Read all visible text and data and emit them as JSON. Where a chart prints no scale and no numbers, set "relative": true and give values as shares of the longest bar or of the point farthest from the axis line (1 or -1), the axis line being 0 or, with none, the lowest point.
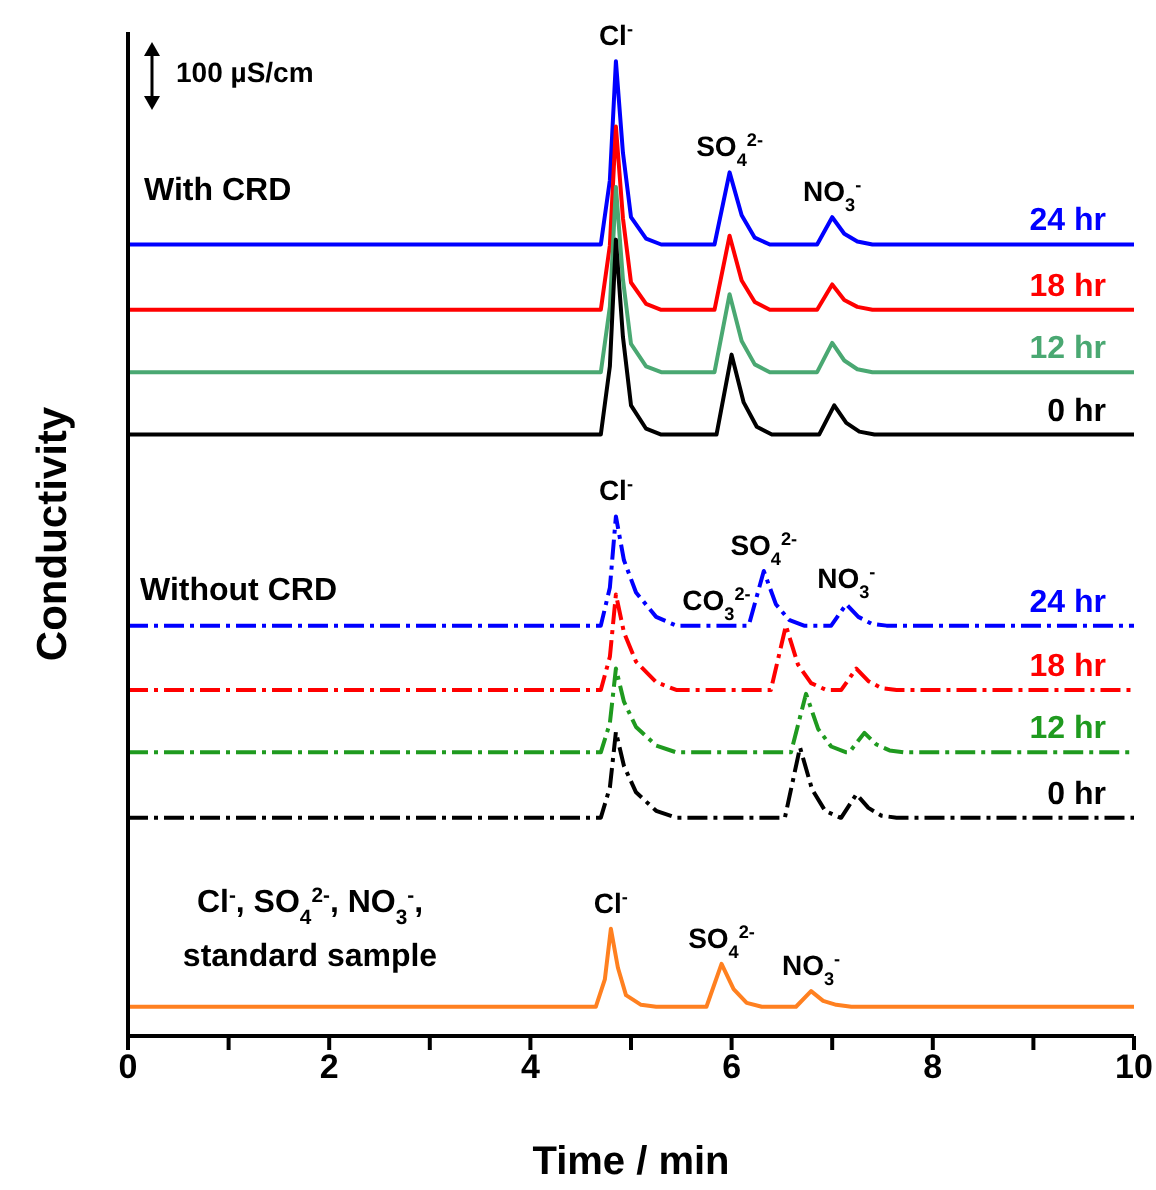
{
  "chart_data": {
    "type": "line",
    "relative": true,
    "xlabel": "Time / min",
    "ylabel": "Conductivity",
    "xlim": [
      0,
      10
    ],
    "xticks": [
      0,
      {
        "value": 1,
        "label": null
      },
      2,
      {
        "value": 3,
        "label": null
      },
      4,
      {
        "value": 5,
        "label": null
      },
      6,
      {
        "value": 7,
        "label": null
      },
      8,
      {
        "value": 9,
        "label": null
      },
      10
    ],
    "annotations": [
      "100 µS/cm",
      "With CRD",
      "Without CRD",
      "Cl$^{-}$, SO$_{4}$$^{2-}$, NO$_{3}$$^{-}$,\nstandard sample",
      {
        "text": "Cl$^{-}$",
        "x": 4.85,
        "y": 1.0
      },
      {
        "text": "SO$_{4}$$^{2-}$",
        "x": 5.98,
        "y": 0.886
      },
      {
        "text": "NO$_{3}$$^{-}$",
        "x": 7.0,
        "y": 0.84
      },
      {
        "text": "Cl$^{-}$",
        "x": 4.85,
        "y": 0.533
      },
      {
        "text": "CO$_{3}$$^{2-}$",
        "x": 5.85,
        "y": 0.421
      },
      {
        "text": "SO$_{4}$$^{2-}$",
        "x": 6.32,
        "y": 0.477
      },
      {
        "text": "NO$_{3}$$^{-}$",
        "x": 7.14,
        "y": 0.443
      },
      {
        "text": "Cl$^{-}$",
        "x": 4.8,
        "y": 0.11
      },
      {
        "text": "SO$_{4}$$^{2-}$",
        "x": 5.9,
        "y": 0.074
      },
      {
        "text": "NO$_{3}$$^{-}$",
        "x": 6.79,
        "y": 0.046
      }
    ],
    "series": [
      {
        "name": "24 hr",
        "color": "#0000ff",
        "line_style": "solid",
        "x": [
          0,
          4.7,
          4.79,
          4.85,
          4.92,
          5.0,
          5.15,
          5.3,
          5.83,
          5.98,
          6.1,
          6.23,
          6.38,
          6.85,
          7.0,
          7.12,
          7.25,
          7.4,
          10
        ],
        "values": [
          0.812,
          0.812,
          0.878,
          1.0,
          0.906,
          0.84,
          0.818,
          0.812,
          0.812,
          0.886,
          0.842,
          0.819,
          0.812,
          0.812,
          0.84,
          0.823,
          0.815,
          0.812,
          0.812
        ]
      },
      {
        "name": "18 hr",
        "color": "#ff0000",
        "line_style": "solid",
        "x": [
          0,
          4.7,
          4.79,
          4.85,
          4.92,
          5.0,
          5.15,
          5.3,
          5.83,
          5.98,
          6.1,
          6.23,
          6.38,
          6.85,
          7.0,
          7.12,
          7.25,
          7.4,
          10
        ],
        "values": [
          0.745,
          0.745,
          0.811,
          0.933,
          0.839,
          0.773,
          0.751,
          0.745,
          0.745,
          0.821,
          0.775,
          0.753,
          0.745,
          0.745,
          0.771,
          0.755,
          0.748,
          0.745,
          0.745
        ]
      },
      {
        "name": "12 hr",
        "color": "#4aa872",
        "line_style": "solid",
        "x": [
          0,
          4.7,
          4.79,
          4.85,
          4.92,
          5.0,
          5.15,
          5.3,
          5.83,
          5.98,
          6.1,
          6.23,
          6.38,
          6.85,
          7.0,
          7.12,
          7.25,
          7.4,
          10
        ],
        "values": [
          0.681,
          0.681,
          0.748,
          0.871,
          0.776,
          0.71,
          0.687,
          0.681,
          0.681,
          0.761,
          0.713,
          0.689,
          0.681,
          0.681,
          0.711,
          0.693,
          0.684,
          0.681,
          0.681
        ]
      },
      {
        "name": "0 hr",
        "color": "#000000",
        "line_style": "solid",
        "x": [
          0,
          4.7,
          4.79,
          4.85,
          4.92,
          5.0,
          5.15,
          5.3,
          5.85,
          6.0,
          6.12,
          6.25,
          6.4,
          6.87,
          7.02,
          7.14,
          7.27,
          7.42,
          10
        ],
        "values": [
          0.617,
          0.617,
          0.687,
          0.817,
          0.717,
          0.647,
          0.623,
          0.617,
          0.617,
          0.699,
          0.65,
          0.625,
          0.617,
          0.617,
          0.647,
          0.629,
          0.62,
          0.617,
          0.617
        ]
      },
      {
        "name": "24 hr",
        "color": "#0000ff",
        "line_style": "dashed",
        "x": [
          0,
          4.7,
          4.79,
          4.85,
          4.93,
          5.05,
          5.25,
          5.45,
          6.17,
          6.32,
          6.44,
          6.57,
          6.72,
          6.99,
          7.14,
          7.26,
          7.39,
          7.54,
          10
        ],
        "values": [
          0.421,
          0.421,
          0.46,
          0.533,
          0.488,
          0.455,
          0.43,
          0.421,
          0.421,
          0.477,
          0.443,
          0.427,
          0.421,
          0.421,
          0.443,
          0.43,
          0.423,
          0.421,
          0.421
        ]
      },
      {
        "name": "18 hr",
        "color": "#ff0000",
        "line_style": "dashed",
        "x": [
          0,
          4.7,
          4.79,
          4.85,
          4.93,
          5.05,
          5.25,
          5.45,
          6.39,
          6.54,
          6.66,
          6.79,
          6.94,
          7.09,
          7.24,
          7.36,
          7.49,
          7.64,
          10
        ],
        "values": [
          0.355,
          0.355,
          0.389,
          0.453,
          0.414,
          0.384,
          0.363,
          0.355,
          0.355,
          0.421,
          0.381,
          0.362,
          0.355,
          0.355,
          0.377,
          0.364,
          0.357,
          0.355,
          0.355
        ]
      },
      {
        "name": "12 hr",
        "color": "#1f9a1f",
        "line_style": "dashed",
        "x": [
          0,
          4.7,
          4.79,
          4.85,
          4.93,
          5.05,
          5.25,
          5.45,
          6.59,
          6.74,
          6.86,
          6.99,
          7.14,
          7.17,
          7.32,
          7.44,
          7.57,
          7.72,
          10
        ],
        "values": [
          0.291,
          0.291,
          0.321,
          0.377,
          0.343,
          0.317,
          0.298,
          0.291,
          0.291,
          0.351,
          0.315,
          0.297,
          0.291,
          0.291,
          0.311,
          0.299,
          0.293,
          0.291,
          0.291
        ]
      },
      {
        "name": "0 hr",
        "color": "#000000",
        "line_style": "dashed",
        "x": [
          0,
          4.7,
          4.79,
          4.85,
          4.93,
          5.05,
          5.25,
          5.45,
          6.53,
          6.68,
          6.8,
          6.93,
          7.08,
          7.09,
          7.24,
          7.36,
          7.49,
          7.64,
          10
        ],
        "values": [
          0.224,
          0.224,
          0.255,
          0.312,
          0.277,
          0.25,
          0.231,
          0.224,
          0.224,
          0.296,
          0.253,
          0.231,
          0.224,
          0.224,
          0.248,
          0.234,
          0.226,
          0.224,
          0.224
        ]
      },
      {
        "color": "#ff8020",
        "line_style": "solid",
        "x": [
          0,
          4.65,
          4.74,
          4.8,
          4.87,
          4.95,
          5.1,
          5.25,
          5.75,
          5.9,
          6.02,
          6.15,
          6.3,
          6.64,
          6.79,
          6.91,
          7.04,
          7.19,
          10
        ],
        "values": [
          0.03,
          0.03,
          0.058,
          0.11,
          0.07,
          0.042,
          0.032,
          0.03,
          0.03,
          0.074,
          0.048,
          0.034,
          0.03,
          0.03,
          0.046,
          0.036,
          0.032,
          0.03,
          0.03
        ]
      }
    ]
  }
}
